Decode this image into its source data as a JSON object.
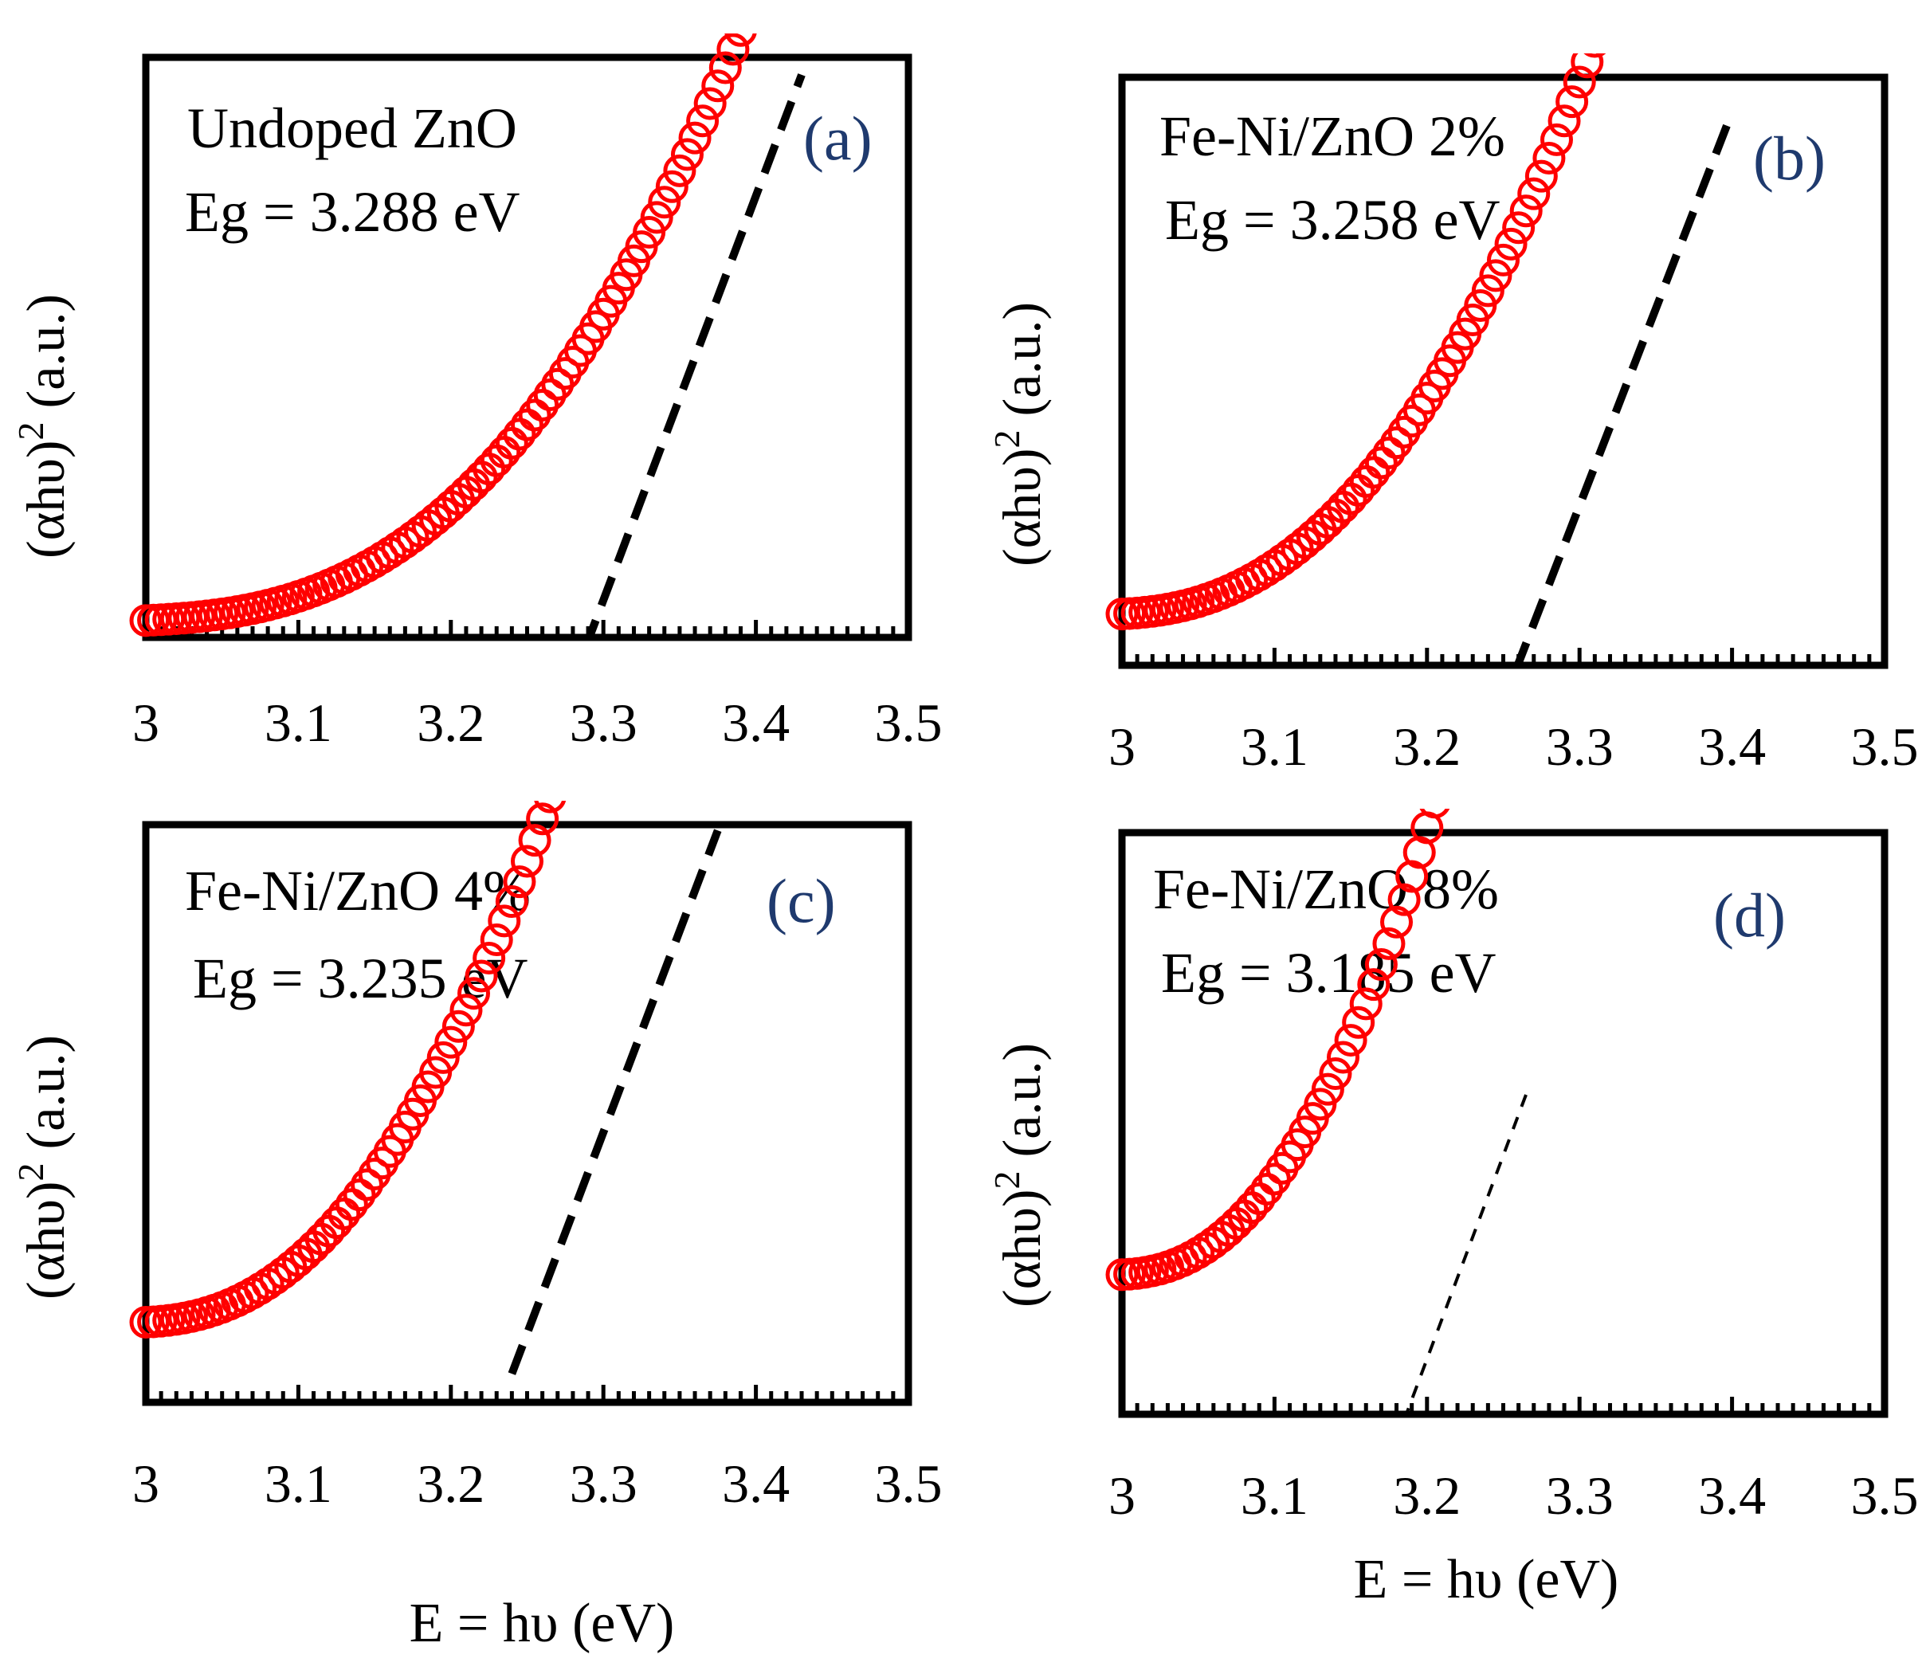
{
  "colors": {
    "marker": "#ff0000",
    "fit_line": "#000000",
    "panel_tag": "#1f3a6e",
    "axis": "#000000"
  },
  "chart_data": [
    {
      "id": "a",
      "type": "scatter",
      "tag": "(a)",
      "sample": "Undoped ZnO",
      "eg_text": "Eg = 3.288  eV",
      "eg_value": 3.288,
      "ylabel_main": "(αhυ)",
      "ylabel_sup": "2",
      "ylabel_unit": " (a.u.)",
      "xlabel": "",
      "xlim": [
        3,
        3.5
      ],
      "ylim": [
        0,
        1
      ],
      "xticks": [
        "3",
        "3.1",
        "3.2",
        "3.3",
        "3.4",
        "3.5"
      ],
      "series": [
        {
          "name": "data",
          "x_start": 3.0,
          "x_end": 3.43,
          "x_step": 0.005,
          "y0": 0.03,
          "k": 11.5,
          "p": 2.6
        }
      ],
      "fit_line": {
        "x1": 3.288,
        "y1": -0.02,
        "x2": 3.43,
        "y2": 1.0,
        "style": "bold-dash"
      }
    },
    {
      "id": "b",
      "type": "scatter",
      "tag": "(b)",
      "sample": "Fe-Ni/ZnO  2%",
      "eg_text": "Eg = 3.258  eV",
      "eg_value": 3.258,
      "ylabel_main": "(αhυ)",
      "ylabel_sup": "2",
      "ylabel_unit": " (a.u.)",
      "xlabel": "",
      "xlim": [
        3,
        3.5
      ],
      "ylim": [
        0,
        1
      ],
      "xticks": [
        "3",
        "3.1",
        "3.2",
        "3.3",
        "3.4",
        "3.5"
      ],
      "series": [
        {
          "name": "data",
          "x_start": 3.0,
          "x_end": 3.4,
          "x_step": 0.005,
          "y0": 0.09,
          "k": 14.2,
          "p": 2.3
        }
      ],
      "fit_line": {
        "x1": 3.258,
        "y1": -0.01,
        "x2": 3.4,
        "y2": 0.97,
        "style": "bold-dash"
      }
    },
    {
      "id": "c",
      "type": "scatter",
      "tag": "(c)",
      "sample": "Fe-Ni/ZnO  4%",
      "eg_text": "Eg = 3.235  eV",
      "eg_value": 3.235,
      "ylabel_main": "(αhυ)",
      "ylabel_sup": "2",
      "ylabel_unit": " (a.u.)",
      "xlabel": "E = hυ (eV)",
      "xlim": [
        3,
        3.5
      ],
      "ylim": [
        0,
        1
      ],
      "xticks": [
        "3",
        "3.1",
        "3.2",
        "3.3",
        "3.4",
        "3.5"
      ],
      "series": [
        {
          "name": "data",
          "x_start": 3.0,
          "x_end": 3.375,
          "x_step": 0.005,
          "y0": 0.14,
          "k": 18.7,
          "p": 2.3
        }
      ],
      "fit_line": {
        "x1": 3.24,
        "y1": 0.05,
        "x2": 3.375,
        "y2": 1.0,
        "style": "bold-dash"
      }
    },
    {
      "id": "d",
      "type": "scatter",
      "tag": "(d)",
      "sample": "Fe-Ni/ZnO  8%",
      "eg_text": "Eg = 3.185  eV",
      "eg_value": 3.185,
      "ylabel_main": "(αhυ)",
      "ylabel_sup": "2",
      "ylabel_unit": " (a.u.)",
      "xlabel": "E = hυ (eV)",
      "xlim": [
        3,
        3.5
      ],
      "ylim": [
        0,
        1
      ],
      "xticks": [
        "3",
        "3.1",
        "3.2",
        "3.3",
        "3.4",
        "3.5"
      ],
      "series": [
        {
          "name": "data",
          "x_start": 3.0,
          "x_end": 3.33,
          "x_step": 0.005,
          "y0": 0.24,
          "k": 30.0,
          "p": 2.3
        }
      ],
      "fit_line": {
        "x1": 3.185,
        "y1": -0.01,
        "x2": 3.265,
        "y2": 0.55,
        "style": "thin-dash"
      }
    }
  ]
}
